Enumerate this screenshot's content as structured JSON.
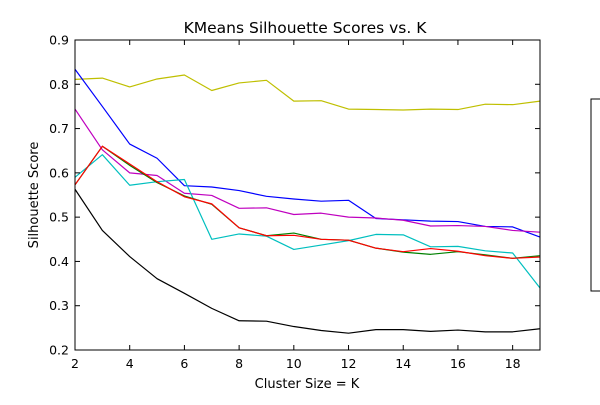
{
  "chart_data": {
    "type": "line",
    "title": "KMeans Silhouette Scores vs. K",
    "xlabel": "Cluster Size = K",
    "ylabel": "Silhouette Score",
    "xlim": [
      2,
      19
    ],
    "ylim": [
      0.2,
      0.9
    ],
    "x_ticks": [
      2,
      4,
      6,
      8,
      10,
      12,
      14,
      16,
      18
    ],
    "y_ticks": [
      0.2,
      0.3,
      0.4,
      0.5,
      0.6,
      0.7,
      0.8,
      0.9
    ],
    "grid": false,
    "legend": "right (box clipped, no visible entries)",
    "x": [
      2,
      3,
      4,
      5,
      6,
      7,
      8,
      9,
      10,
      11,
      12,
      13,
      14,
      15,
      16,
      17,
      18,
      19
    ],
    "series": [
      {
        "color": "#bfbf00",
        "values": [
          0.811,
          0.814,
          0.794,
          0.812,
          0.821,
          0.786,
          0.803,
          0.809,
          0.762,
          0.763,
          0.744,
          0.743,
          0.742,
          0.744,
          0.743,
          0.755,
          0.754,
          0.762
        ]
      },
      {
        "color": "#0000ff",
        "values": [
          0.834,
          0.75,
          0.665,
          0.633,
          0.571,
          0.568,
          0.56,
          0.547,
          0.541,
          0.536,
          0.538,
          0.497,
          0.494,
          0.491,
          0.49,
          0.479,
          0.478,
          0.455
        ]
      },
      {
        "color": "#bf00bf",
        "values": [
          0.744,
          0.652,
          0.6,
          0.594,
          0.554,
          0.549,
          0.52,
          0.521,
          0.506,
          0.509,
          0.5,
          0.498,
          0.493,
          0.48,
          0.481,
          0.479,
          0.47,
          0.466
        ]
      },
      {
        "color": "#00bfbf",
        "values": [
          0.59,
          0.641,
          0.572,
          0.58,
          0.585,
          0.45,
          0.462,
          0.457,
          0.427,
          0.437,
          0.447,
          0.461,
          0.46,
          0.433,
          0.434,
          0.424,
          0.419,
          0.34
        ]
      },
      {
        "color": "#008000",
        "values": [
          0.573,
          0.66,
          0.617,
          0.578,
          0.548,
          0.529,
          0.476,
          0.458,
          0.464,
          0.45,
          0.448,
          0.43,
          0.421,
          0.416,
          0.422,
          0.415,
          0.407,
          0.413
        ]
      },
      {
        "color": "#ff0000",
        "values": [
          0.573,
          0.66,
          0.62,
          0.58,
          0.546,
          0.53,
          0.476,
          0.458,
          0.459,
          0.45,
          0.448,
          0.43,
          0.422,
          0.429,
          0.423,
          0.413,
          0.407,
          0.41
        ]
      },
      {
        "color": "#000000",
        "values": [
          0.563,
          0.47,
          0.411,
          0.361,
          0.328,
          0.294,
          0.266,
          0.265,
          0.253,
          0.244,
          0.238,
          0.246,
          0.246,
          0.242,
          0.245,
          0.241,
          0.241,
          0.248
        ]
      }
    ]
  }
}
